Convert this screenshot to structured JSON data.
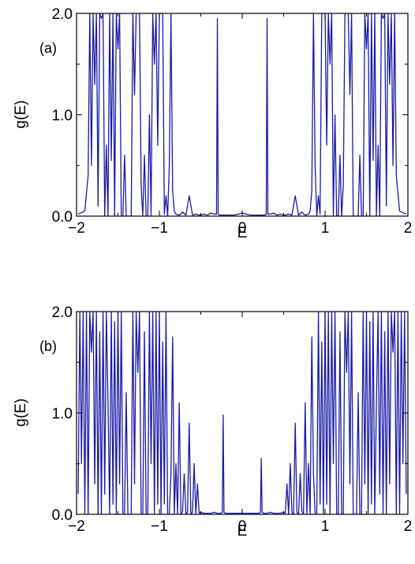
{
  "chart_data": [
    {
      "type": "line",
      "panel_label": "(a)",
      "xlabel": "E",
      "ylabel": "g(E)",
      "xlim": [
        -2,
        2
      ],
      "ylim": [
        0,
        2
      ],
      "xticks": [
        -2,
        -1,
        0,
        1,
        2
      ],
      "xtick_labels": [
        "−2",
        "−1",
        "0",
        "1",
        "2"
      ],
      "yticks": [
        0,
        1,
        2
      ],
      "ytick_labels": [
        "0.0",
        "1.0",
        "2.0"
      ],
      "grid": false,
      "line_color": "#1a1aa6",
      "x": [
        -1.98,
        -1.9,
        -1.86,
        -1.84,
        -1.82,
        -1.8,
        -1.78,
        -1.76,
        -1.74,
        -1.72,
        -1.7,
        -1.68,
        -1.66,
        -1.64,
        -1.62,
        -1.6,
        -1.58,
        -1.56,
        -1.54,
        -1.52,
        -1.5,
        -1.48,
        -1.46,
        -1.44,
        -1.42,
        -1.4,
        -1.38,
        -1.36,
        -1.34,
        -1.32,
        -1.3,
        -1.28,
        -1.26,
        -1.24,
        -1.22,
        -1.2,
        -1.18,
        -1.16,
        -1.14,
        -1.12,
        -1.1,
        -1.08,
        -1.06,
        -1.04,
        -1.02,
        -1.0,
        -0.98,
        -0.96,
        -0.94,
        -0.92,
        -0.9,
        -0.88,
        -0.86,
        -0.84,
        -0.82,
        -0.8,
        -0.76,
        -0.72,
        -0.68,
        -0.64,
        -0.6,
        -0.56,
        -0.52,
        -0.5,
        -0.46,
        -0.42,
        -0.38,
        -0.34,
        -0.31,
        -0.3,
        -0.29,
        -0.27,
        -0.2,
        -0.1,
        0.0,
        0.1,
        0.2,
        0.27,
        0.29,
        0.3,
        0.31,
        0.34,
        0.38,
        0.42,
        0.46,
        0.5,
        0.52,
        0.56,
        0.6,
        0.64,
        0.68,
        0.72,
        0.76,
        0.8,
        0.82,
        0.84,
        0.86,
        0.88,
        0.9,
        0.92,
        0.94,
        0.96,
        0.98,
        1.0,
        1.02,
        1.04,
        1.06,
        1.08,
        1.1,
        1.12,
        1.14,
        1.16,
        1.18,
        1.2,
        1.22,
        1.24,
        1.26,
        1.28,
        1.3,
        1.32,
        1.34,
        1.36,
        1.38,
        1.4,
        1.42,
        1.44,
        1.46,
        1.48,
        1.5,
        1.52,
        1.54,
        1.56,
        1.58,
        1.6,
        1.62,
        1.64,
        1.66,
        1.68,
        1.7,
        1.72,
        1.74,
        1.76,
        1.78,
        1.8,
        1.82,
        1.84,
        1.86,
        1.9,
        1.98
      ],
      "y": [
        0.02,
        0.05,
        0.4,
        2.0,
        0.5,
        2.0,
        1.3,
        2.0,
        0.1,
        2.0,
        1.95,
        2.0,
        0.0,
        0.7,
        0.0,
        2.0,
        0.55,
        2.0,
        0.0,
        2.0,
        1.65,
        2.0,
        0.0,
        0.0,
        0.6,
        0.0,
        0.0,
        0.0,
        0.0,
        2.0,
        1.2,
        2.0,
        2.0,
        2.0,
        0.3,
        0.0,
        0.6,
        0.0,
        0.0,
        1.0,
        0.0,
        2.0,
        1.5,
        2.0,
        0.7,
        2.0,
        2.0,
        2.0,
        0.02,
        0.2,
        0.0,
        0.5,
        2.0,
        0.25,
        0.05,
        0.02,
        0.01,
        0.04,
        0.01,
        0.2,
        0.01,
        0.02,
        0.01,
        0.01,
        0.02,
        0.01,
        0.03,
        0.02,
        0.02,
        1.95,
        0.02,
        0.01,
        0.01,
        0.01,
        0.03,
        0.01,
        0.01,
        0.01,
        0.02,
        1.95,
        0.02,
        0.02,
        0.03,
        0.01,
        0.02,
        0.01,
        0.01,
        0.02,
        0.01,
        0.2,
        0.01,
        0.04,
        0.01,
        0.02,
        0.05,
        0.25,
        2.0,
        0.5,
        0.0,
        0.2,
        0.02,
        2.0,
        2.0,
        2.0,
        0.7,
        2.0,
        1.5,
        2.0,
        0.0,
        1.0,
        0.0,
        0.0,
        0.6,
        0.0,
        0.3,
        2.0,
        2.0,
        2.0,
        1.2,
        2.0,
        0.0,
        0.0,
        0.0,
        0.0,
        0.6,
        0.0,
        0.0,
        2.0,
        1.65,
        2.0,
        0.0,
        2.0,
        0.55,
        2.0,
        0.0,
        0.7,
        0.0,
        2.0,
        1.95,
        2.0,
        0.1,
        2.0,
        1.3,
        2.0,
        0.5,
        2.0,
        0.4,
        0.05,
        0.02
      ]
    },
    {
      "type": "line",
      "panel_label": "(b)",
      "xlabel": "E",
      "ylabel": "g(E)",
      "xlim": [
        -2,
        2
      ],
      "ylim": [
        0,
        2
      ],
      "xticks": [
        -2,
        -1,
        0,
        1,
        2
      ],
      "xtick_labels": [
        "−2",
        "−1",
        "0",
        "1",
        "2"
      ],
      "yticks": [
        0,
        1,
        2
      ],
      "ytick_labels": [
        "0.0",
        "1.0",
        "2.0"
      ],
      "grid": false,
      "line_color": "#1a1aa6",
      "x": [
        -1.98,
        -1.96,
        -1.94,
        -1.92,
        -1.9,
        -1.88,
        -1.86,
        -1.84,
        -1.82,
        -1.8,
        -1.78,
        -1.76,
        -1.74,
        -1.72,
        -1.7,
        -1.68,
        -1.66,
        -1.64,
        -1.62,
        -1.6,
        -1.58,
        -1.56,
        -1.54,
        -1.52,
        -1.5,
        -1.48,
        -1.46,
        -1.44,
        -1.42,
        -1.4,
        -1.38,
        -1.36,
        -1.34,
        -1.32,
        -1.3,
        -1.28,
        -1.26,
        -1.24,
        -1.22,
        -1.2,
        -1.18,
        -1.16,
        -1.14,
        -1.12,
        -1.1,
        -1.08,
        -1.06,
        -1.04,
        -1.02,
        -1.0,
        -0.98,
        -0.96,
        -0.94,
        -0.92,
        -0.9,
        -0.88,
        -0.86,
        -0.84,
        -0.82,
        -0.8,
        -0.78,
        -0.76,
        -0.74,
        -0.72,
        -0.7,
        -0.68,
        -0.66,
        -0.64,
        -0.62,
        -0.6,
        -0.58,
        -0.56,
        -0.54,
        -0.52,
        -0.5,
        -0.46,
        -0.42,
        -0.38,
        -0.34,
        -0.3,
        -0.26,
        -0.24,
        -0.23,
        -0.22,
        -0.2,
        -0.1,
        0.0,
        0.1,
        0.2,
        0.22,
        0.23,
        0.24,
        0.26,
        0.3,
        0.34,
        0.38,
        0.42,
        0.46,
        0.5,
        0.52,
        0.54,
        0.56,
        0.58,
        0.6,
        0.62,
        0.64,
        0.66,
        0.68,
        0.7,
        0.72,
        0.74,
        0.76,
        0.78,
        0.8,
        0.82,
        0.84,
        0.86,
        0.88,
        0.9,
        0.92,
        0.94,
        0.96,
        0.98,
        1.0,
        1.02,
        1.04,
        1.06,
        1.08,
        1.1,
        1.12,
        1.14,
        1.16,
        1.18,
        1.2,
        1.22,
        1.24,
        1.26,
        1.28,
        1.3,
        1.32,
        1.34,
        1.36,
        1.38,
        1.4,
        1.42,
        1.44,
        1.46,
        1.48,
        1.5,
        1.52,
        1.54,
        1.56,
        1.58,
        1.6,
        1.62,
        1.64,
        1.66,
        1.68,
        1.7,
        1.72,
        1.74,
        1.76,
        1.78,
        1.8,
        1.82,
        1.84,
        1.86,
        1.88,
        1.9,
        1.92,
        1.94,
        1.96,
        1.98
      ],
      "y": [
        0.2,
        2.0,
        0.5,
        2.0,
        0.0,
        2.0,
        0.0,
        2.0,
        1.6,
        2.0,
        0.3,
        2.0,
        0.0,
        1.8,
        0.0,
        2.0,
        0.2,
        2.0,
        1.1,
        0.0,
        2.0,
        0.1,
        1.9,
        0.0,
        2.0,
        0.3,
        2.0,
        0.0,
        0.0,
        1.2,
        0.0,
        0.0,
        0.0,
        2.0,
        0.3,
        2.0,
        1.4,
        2.0,
        0.0,
        0.0,
        1.8,
        0.0,
        0.0,
        2.0,
        0.5,
        2.0,
        0.0,
        2.0,
        0.1,
        2.0,
        0.0,
        1.7,
        0.1,
        2.0,
        0.0,
        0.0,
        0.4,
        1.75,
        0.0,
        0.5,
        0.0,
        1.1,
        0.0,
        0.03,
        0.4,
        0.0,
        0.02,
        0.9,
        0.0,
        0.02,
        0.5,
        0.0,
        0.3,
        0.01,
        0.02,
        0.01,
        0.01,
        0.01,
        0.02,
        0.01,
        0.01,
        0.02,
        0.98,
        0.02,
        0.01,
        0.01,
        0.01,
        0.01,
        0.01,
        0.02,
        0.55,
        0.02,
        0.01,
        0.01,
        0.02,
        0.01,
        0.01,
        0.01,
        0.02,
        0.01,
        0.3,
        0.0,
        0.5,
        0.02,
        0.0,
        0.9,
        0.02,
        0.0,
        0.4,
        0.03,
        0.0,
        1.1,
        0.0,
        0.5,
        0.0,
        1.75,
        0.4,
        0.0,
        0.0,
        2.0,
        0.1,
        1.7,
        0.0,
        2.0,
        0.1,
        2.0,
        0.0,
        2.0,
        0.5,
        2.0,
        0.0,
        0.0,
        1.8,
        0.0,
        0.0,
        2.0,
        1.4,
        2.0,
        0.3,
        2.0,
        0.0,
        0.0,
        0.0,
        1.2,
        0.0,
        0.0,
        2.0,
        0.3,
        2.0,
        0.0,
        1.9,
        0.1,
        2.0,
        0.0,
        1.1,
        2.0,
        0.2,
        2.0,
        0.0,
        1.8,
        0.0,
        2.0,
        0.3,
        2.0,
        1.6,
        2.0,
        0.0,
        2.0,
        0.0,
        2.0,
        0.5,
        2.0,
        0.2
      ]
    }
  ]
}
